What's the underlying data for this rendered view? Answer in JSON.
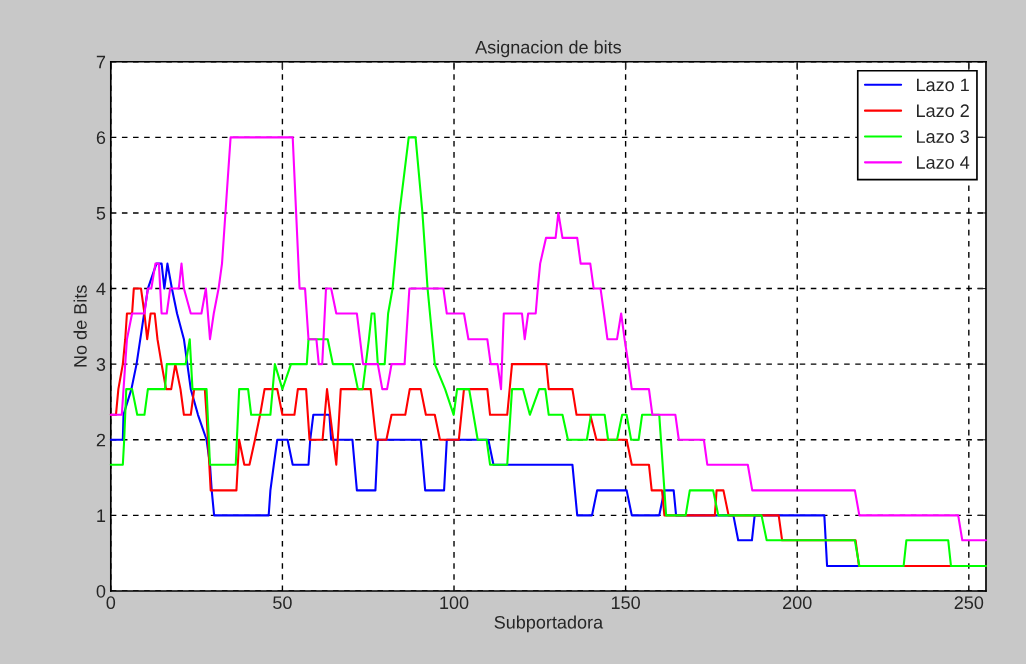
{
  "chart_data": {
    "type": "line",
    "title": "Asignacion de bits",
    "xlabel": "Subportadora",
    "ylabel": "No de Bits",
    "xlim": [
      0,
      255
    ],
    "xticks": [
      0,
      50,
      100,
      150,
      200,
      250
    ],
    "ylim": [
      0,
      7
    ],
    "yticks": [
      0,
      1,
      2,
      3,
      4,
      5,
      6,
      7
    ],
    "grid": true,
    "legend": "top right",
    "marker": "none",
    "line_style": "solid",
    "series": [
      {
        "name": "Lazo 1",
        "color": "#0000ff",
        "x": [
          0,
          3.5,
          3.7,
          6,
          7.5,
          10.8,
          13.3,
          14.8,
          15.6,
          16.5,
          17.8,
          19.3,
          21.3,
          22.3,
          23.3,
          25.4,
          27.9,
          28.9,
          29.4,
          30.1,
          46,
          46.5,
          47.5,
          48.5,
          51.5,
          53,
          57.6,
          58.1,
          59,
          63.7,
          64.2,
          70.4,
          71.7,
          77.1,
          77.8,
          90.3,
          91.6,
          97.1,
          97.9,
          110,
          111.5,
          134.5,
          135.9,
          140.2,
          141.7,
          150.3,
          151.8,
          159.8,
          161.3,
          164,
          164.7,
          181.4,
          182.8,
          186.8,
          187.6,
          207.9,
          208.7,
          255
        ],
        "values": [
          2,
          2,
          2.33,
          2.67,
          3,
          4,
          4.33,
          4.33,
          4,
          4.33,
          4,
          3.67,
          3.33,
          3,
          2.67,
          2.33,
          2,
          1.67,
          1.33,
          1,
          1,
          1.33,
          1.67,
          2,
          2,
          1.67,
          1.67,
          2,
          2.33,
          2.33,
          2,
          2,
          1.33,
          1.33,
          2,
          2,
          1.33,
          1.33,
          2,
          2,
          1.67,
          1.67,
          1,
          1,
          1.33,
          1.33,
          1,
          1,
          1.33,
          1.33,
          1,
          1,
          0.67,
          0.67,
          1,
          1,
          0.33,
          0.33
        ]
      },
      {
        "name": "Lazo 2",
        "color": "#ff0000",
        "x": [
          0,
          1.5,
          2.2,
          3.5,
          4.2,
          4.7,
          6.2,
          6.7,
          8.8,
          9.8,
          10.6,
          11.6,
          12.8,
          13.6,
          14.8,
          16.1,
          17.6,
          18.8,
          20.3,
          21.3,
          23.3,
          24.3,
          27.4,
          27.9,
          28.7,
          29.1,
          36.6,
          37.4,
          38.9,
          40.4,
          42,
          43.5,
          44.8,
          48.5,
          50,
          53.5,
          54.5,
          56.9,
          57.9,
          61.7,
          63,
          65.7,
          67,
          75.7,
          77.3,
          80.3,
          81.8,
          85.8,
          87.1,
          90.3,
          91.8,
          94.4,
          95.9,
          101.4,
          102.9,
          109.7,
          110.5,
          115.5,
          116.9,
          126.9,
          127.6,
          134.5,
          135.7,
          139.7,
          141.5,
          150.3,
          151.8,
          156.8,
          157.6,
          160.6,
          161.3,
          176,
          176.5,
          178.5,
          180,
          194.6,
          195.6,
          217,
          218,
          255
        ],
        "values": [
          2.33,
          2.33,
          2.67,
          3,
          3.33,
          3.67,
          3.67,
          4,
          4,
          3.67,
          3.33,
          3.67,
          3.67,
          3.33,
          3,
          2.67,
          2.67,
          3,
          2.67,
          2.33,
          2.33,
          2.67,
          2.67,
          2.33,
          1.67,
          1.33,
          1.33,
          2,
          1.67,
          1.67,
          2,
          2.33,
          2.67,
          2.67,
          2.33,
          2.33,
          2.67,
          2.67,
          2,
          2,
          2.67,
          1.67,
          2.67,
          2.67,
          2,
          2,
          2.33,
          2.33,
          2.67,
          2.67,
          2.33,
          2.33,
          2,
          2,
          2.67,
          2.67,
          2.33,
          2.33,
          3,
          3,
          2.67,
          2.67,
          2.33,
          2.33,
          2,
          2,
          1.67,
          1.67,
          1.33,
          1.33,
          1,
          1,
          1.33,
          1.33,
          1,
          1,
          0.67,
          0.67,
          0.33,
          0.33
        ]
      },
      {
        "name": "Lazo 3",
        "color": "#00ff00",
        "x": [
          0,
          3.5,
          3.9,
          4.5,
          6.2,
          7.7,
          9.8,
          10.8,
          15.8,
          16.3,
          21.8,
          23,
          23.8,
          27.9,
          28.9,
          36.4,
          37.4,
          40,
          40.9,
          46.5,
          47.8,
          50,
          52.5,
          57.1,
          57.6,
          63.2,
          64.7,
          70.5,
          72,
          73.4,
          75.2,
          76,
          76.8,
          77.8,
          79.8,
          80.8,
          82.1,
          84.1,
          86.8,
          88.8,
          90.8,
          92.3,
          94.4,
          97.4,
          99.9,
          100.9,
          104.4,
          106.9,
          109.5,
          110.5,
          115.5,
          116.9,
          120.1,
          122.1,
          124.8,
          126.6,
          127.6,
          131.6,
          133.2,
          138.7,
          139.9,
          143.9,
          144.9,
          147.5,
          149,
          150.3,
          151.6,
          153.8,
          154.8,
          159.8,
          161.8,
          167.5,
          168.7,
          175.5,
          177,
          189.6,
          191.1,
          216.8,
          218.1,
          231,
          231.8,
          244,
          244.8,
          255
        ],
        "values": [
          1.67,
          1.67,
          2,
          2.67,
          2.67,
          2.33,
          2.33,
          2.67,
          2.67,
          3,
          3,
          3.33,
          2.67,
          2.67,
          1.67,
          1.67,
          2.67,
          2.67,
          2.33,
          2.33,
          3,
          2.67,
          3,
          3,
          3.33,
          3.33,
          3,
          3,
          2.67,
          2.67,
          3.33,
          3.67,
          3.67,
          3,
          3,
          3.67,
          4,
          5,
          6,
          6,
          5,
          4,
          3,
          2.67,
          2.33,
          2.67,
          2.67,
          2,
          2,
          1.67,
          1.67,
          2.67,
          2.67,
          2.33,
          2.67,
          2.67,
          2.33,
          2.33,
          2,
          2,
          2.33,
          2.33,
          2,
          2,
          2.33,
          2.33,
          2,
          2,
          2.33,
          2.33,
          1,
          1,
          1.33,
          1.33,
          1,
          1,
          0.67,
          0.67,
          0.33,
          0.33,
          0.67,
          0.67,
          0.33,
          0.33
        ]
      },
      {
        "name": "Lazo 4",
        "color": "#ff00ff",
        "x": [
          0,
          3.2,
          4.2,
          4.7,
          6.2,
          9.8,
          10.8,
          11.8,
          13,
          14,
          14.8,
          16.3,
          17.3,
          19.8,
          20.6,
          21.3,
          23.3,
          26.4,
          27.7,
          28.9,
          30,
          31.4,
          32.4,
          33.4,
          34.9,
          53,
          54,
          55,
          56.6,
          57.6,
          59.9,
          60.6,
          61.6,
          62.7,
          64.2,
          65.7,
          71.7,
          73.5,
          77.8,
          79.1,
          80.5,
          81.8,
          85.6,
          87,
          96.9,
          97.9,
          102.9,
          104.2,
          109.7,
          110.7,
          112.7,
          113.7,
          114.5,
          119.8,
          120.6,
          121.6,
          123.8,
          124.4,
          125.1,
          126.8,
          129.6,
          130.4,
          131.6,
          135.9,
          136.9,
          139.7,
          140.7,
          142.7,
          143.7,
          144.7,
          147.5,
          148.7,
          149.7,
          150.8,
          151.8,
          156.8,
          157.8,
          164.5,
          165.5,
          172.8,
          173.8,
          185.6,
          186.9,
          216.8,
          218.1,
          246.9,
          248.1,
          255
        ],
        "values": [
          2.33,
          2.33,
          3,
          3.33,
          3.67,
          3.67,
          4,
          4,
          4.33,
          4.33,
          3.67,
          3.67,
          4,
          4,
          4.33,
          4,
          3.67,
          3.67,
          4,
          3.33,
          3.67,
          4,
          4.33,
          5,
          6,
          6,
          5,
          4,
          4,
          3.33,
          3.33,
          3,
          3,
          4,
          4,
          3.67,
          3.67,
          3,
          3,
          2.67,
          2.67,
          3,
          3,
          4,
          4,
          3.67,
          3.67,
          3.33,
          3.33,
          3,
          3,
          2.67,
          3.67,
          3.67,
          3.33,
          3.67,
          3.67,
          4,
          4.33,
          4.67,
          4.67,
          5,
          4.67,
          4.67,
          4.33,
          4.33,
          4,
          4,
          3.67,
          3.33,
          3.33,
          3.67,
          3.33,
          3,
          2.67,
          2.67,
          2.33,
          2.33,
          2,
          2,
          1.67,
          1.67,
          1.33,
          1.33,
          1,
          1,
          0.67,
          0.67
        ]
      }
    ]
  }
}
